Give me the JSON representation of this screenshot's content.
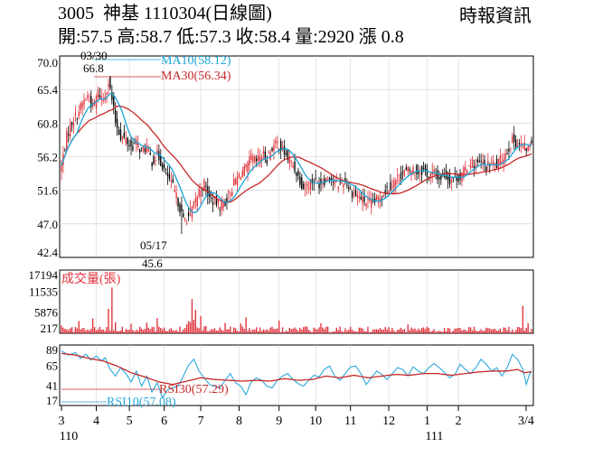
{
  "header": {
    "title": "3005  神基 1110304(日線圖)",
    "source": "時報資訊",
    "quote": "開:57.5 高:58.7 低:57.3 收:58.4 量:2920 漲 0.8"
  },
  "colors": {
    "candle_up": "#e0303a",
    "candle_down": "#000000",
    "ma10": "#1aa4d6",
    "ma30": "#c82828",
    "volume": "#e0303a",
    "rsi10": "#2aa8dc",
    "rsi30": "#c82828",
    "grid": "#cccccc"
  },
  "chart_data": [
    {
      "type": "candlestick",
      "title": "price",
      "ylim": [
        42.4,
        70.0
      ],
      "yticks": [
        "70.0",
        "65.4",
        "60.8",
        "56.2",
        "51.6",
        "47.0",
        "42.4"
      ],
      "series": [
        {
          "name": "MA10",
          "label": "MA10(58.12)"
        },
        {
          "name": "MA30",
          "label": "MA30(56.34)"
        }
      ],
      "annotations": [
        {
          "text_date": "03/30",
          "text_value": "66.8",
          "type": "high"
        },
        {
          "text_date": "05/17",
          "text_value": "45.6",
          "type": "low"
        }
      ],
      "close_path": [
        [
          0,
          55
        ],
        [
          3,
          59
        ],
        [
          6,
          61
        ],
        [
          9,
          62
        ],
        [
          12,
          63.5
        ],
        [
          15,
          64.5
        ],
        [
          18,
          63
        ],
        [
          21,
          65
        ],
        [
          24,
          64
        ],
        [
          27,
          66.5
        ],
        [
          29,
          64
        ],
        [
          31,
          61
        ],
        [
          34,
          59
        ],
        [
          37,
          58.5
        ],
        [
          40,
          57.5
        ],
        [
          43,
          58
        ],
        [
          46,
          57
        ],
        [
          49,
          57.5
        ],
        [
          52,
          55.5
        ],
        [
          55,
          56.5
        ],
        [
          58,
          55
        ],
        [
          61,
          53.5
        ],
        [
          64,
          52
        ],
        [
          67,
          50
        ],
        [
          70,
          47.5
        ],
        [
          73,
          48
        ],
        [
          76,
          49.5
        ],
        [
          79,
          51.5
        ],
        [
          82,
          52.5
        ],
        [
          85,
          50.5
        ],
        [
          88,
          50
        ],
        [
          91,
          49.5
        ],
        [
          94,
          50
        ],
        [
          97,
          51.5
        ],
        [
          100,
          53
        ],
        [
          103,
          54
        ],
        [
          106,
          54.5
        ],
        [
          109,
          56
        ],
        [
          112,
          55.5
        ],
        [
          115,
          56.5
        ],
        [
          118,
          56
        ],
        [
          121,
          57.5
        ],
        [
          124,
          58
        ],
        [
          127,
          57
        ],
        [
          130,
          56
        ],
        [
          133,
          55
        ],
        [
          136,
          53.5
        ],
        [
          139,
          52
        ],
        [
          142,
          52.5
        ],
        [
          145,
          53
        ],
        [
          148,
          52.5
        ],
        [
          151,
          53
        ],
        [
          154,
          53.5
        ],
        [
          157,
          52.5
        ],
        [
          160,
          52.5
        ],
        [
          163,
          53
        ],
        [
          166,
          51.5
        ],
        [
          169,
          51
        ],
        [
          172,
          50.5
        ],
        [
          175,
          50
        ],
        [
          178,
          49.8
        ],
        [
          181,
          50.3
        ],
        [
          184,
          51
        ],
        [
          187,
          51.8
        ],
        [
          190,
          52.5
        ],
        [
          193,
          53.2
        ],
        [
          196,
          54
        ],
        [
          199,
          54.2
        ],
        [
          202,
          54.5
        ],
        [
          205,
          54
        ],
        [
          208,
          54.5
        ],
        [
          211,
          53.5
        ],
        [
          214,
          54
        ],
        [
          217,
          53.2
        ],
        [
          220,
          53.8
        ],
        [
          223,
          53
        ],
        [
          226,
          53.5
        ],
        [
          229,
          53.3
        ],
        [
          232,
          54.5
        ],
        [
          235,
          55.5
        ],
        [
          238,
          55
        ],
        [
          241,
          55.3
        ],
        [
          244,
          54.8
        ],
        [
          247,
          55.3
        ],
        [
          250,
          55
        ],
        [
          253,
          56
        ],
        [
          256,
          57
        ],
        [
          259,
          58.5
        ],
        [
          262,
          58
        ],
        [
          265,
          57.5
        ],
        [
          268,
          57.3
        ],
        [
          270,
          58.4
        ]
      ]
    },
    {
      "type": "bar",
      "title": "成交量(張)",
      "ylim": [
        217,
        17194
      ],
      "yticks": [
        "17194",
        "11535",
        "5876",
        "217"
      ],
      "values_by_index": [
        [
          0,
          2300
        ],
        [
          10,
          3500
        ],
        [
          18,
          4200
        ],
        [
          27,
          6800
        ],
        [
          29,
          12500
        ],
        [
          31,
          3200
        ],
        [
          40,
          2800
        ],
        [
          49,
          3100
        ],
        [
          55,
          4300
        ],
        [
          73,
          3500
        ],
        [
          75,
          9400
        ],
        [
          77,
          6500
        ],
        [
          80,
          4800
        ],
        [
          94,
          3000
        ],
        [
          103,
          2800
        ],
        [
          106,
          4500
        ],
        [
          125,
          3600
        ],
        [
          149,
          2900
        ],
        [
          199,
          2600
        ],
        [
          237,
          2000
        ],
        [
          265,
          7600
        ],
        [
          268,
          2920
        ]
      ],
      "baseline_value": 1200
    },
    {
      "type": "line",
      "title": "RSI",
      "ylim": [
        17,
        89
      ],
      "yticks": [
        "89",
        "65",
        "41",
        "17"
      ],
      "series": [
        {
          "name": "RSI30",
          "label": "RSI30(57.29)"
        },
        {
          "name": "RSI10",
          "label": "RSI10(57.08)"
        }
      ],
      "rsi10_path": [
        [
          0,
          82
        ],
        [
          4,
          77
        ],
        [
          8,
          80
        ],
        [
          11,
          73
        ],
        [
          14,
          78
        ],
        [
          17,
          71
        ],
        [
          20,
          76
        ],
        [
          23,
          70
        ],
        [
          25,
          74
        ],
        [
          28,
          60
        ],
        [
          31,
          52
        ],
        [
          34,
          62
        ],
        [
          37,
          55
        ],
        [
          40,
          45
        ],
        [
          43,
          58
        ],
        [
          46,
          40
        ],
        [
          49,
          52
        ],
        [
          52,
          33
        ],
        [
          55,
          44
        ],
        [
          58,
          26
        ],
        [
          61,
          36
        ],
        [
          64,
          38
        ],
        [
          67,
          40
        ],
        [
          70,
          52
        ],
        [
          73,
          65
        ],
        [
          76,
          72
        ],
        [
          79,
          58
        ],
        [
          82,
          50
        ],
        [
          85,
          42
        ],
        [
          88,
          40
        ],
        [
          91,
          38
        ],
        [
          94,
          47
        ],
        [
          97,
          55
        ],
        [
          100,
          44
        ],
        [
          103,
          40
        ],
        [
          106,
          30
        ],
        [
          109,
          45
        ],
        [
          112,
          50
        ],
        [
          115,
          47
        ],
        [
          118,
          40
        ],
        [
          121,
          38
        ],
        [
          124,
          47
        ],
        [
          127,
          52
        ],
        [
          130,
          55
        ],
        [
          133,
          48
        ],
        [
          136,
          43
        ],
        [
          139,
          40
        ],
        [
          142,
          47
        ],
        [
          145,
          53
        ],
        [
          148,
          51
        ],
        [
          151,
          60
        ],
        [
          154,
          64
        ],
        [
          157,
          52
        ],
        [
          160,
          47
        ],
        [
          163,
          55
        ],
        [
          166,
          63
        ],
        [
          169,
          64
        ],
        [
          172,
          55
        ],
        [
          175,
          42
        ],
        [
          178,
          50
        ],
        [
          181,
          58
        ],
        [
          184,
          54
        ],
        [
          187,
          48
        ],
        [
          190,
          55
        ],
        [
          193,
          62
        ],
        [
          196,
          60
        ],
        [
          199,
          52
        ],
        [
          202,
          63
        ],
        [
          205,
          58
        ],
        [
          208,
          55
        ],
        [
          211,
          62
        ],
        [
          214,
          67
        ],
        [
          217,
          62
        ],
        [
          220,
          56
        ],
        [
          223,
          50
        ],
        [
          226,
          54
        ],
        [
          229,
          66
        ],
        [
          232,
          60
        ],
        [
          235,
          55
        ],
        [
          238,
          62
        ],
        [
          241,
          72
        ],
        [
          244,
          66
        ],
        [
          247,
          58
        ],
        [
          250,
          62
        ],
        [
          253,
          52
        ],
        [
          256,
          62
        ],
        [
          259,
          78
        ],
        [
          262,
          72
        ],
        [
          265,
          60
        ],
        [
          267,
          42
        ],
        [
          269,
          55
        ],
        [
          270,
          57.08
        ]
      ],
      "rsi30_path": [
        [
          0,
          79
        ],
        [
          8,
          77
        ],
        [
          16,
          73
        ],
        [
          24,
          70
        ],
        [
          32,
          64
        ],
        [
          40,
          56
        ],
        [
          48,
          51
        ],
        [
          56,
          45
        ],
        [
          64,
          42
        ],
        [
          72,
          46
        ],
        [
          80,
          50
        ],
        [
          88,
          48
        ],
        [
          96,
          47
        ],
        [
          104,
          46
        ],
        [
          112,
          47
        ],
        [
          120,
          46
        ],
        [
          128,
          49
        ],
        [
          136,
          47
        ],
        [
          144,
          48
        ],
        [
          152,
          52
        ],
        [
          160,
          50
        ],
        [
          168,
          53
        ],
        [
          176,
          50
        ],
        [
          184,
          52
        ],
        [
          192,
          54
        ],
        [
          200,
          53
        ],
        [
          208,
          55
        ],
        [
          216,
          55
        ],
        [
          224,
          53
        ],
        [
          232,
          55
        ],
        [
          240,
          57
        ],
        [
          248,
          58
        ],
        [
          256,
          58
        ],
        [
          262,
          60
        ],
        [
          266,
          56
        ],
        [
          270,
          57.29
        ]
      ]
    }
  ],
  "xaxis": {
    "month_labels": [
      {
        "label": "3",
        "index": 0
      },
      {
        "label": "4",
        "index": 20
      },
      {
        "label": "5",
        "index": 39
      },
      {
        "label": "6",
        "index": 59
      },
      {
        "label": "7",
        "index": 80
      },
      {
        "label": "8",
        "index": 102
      },
      {
        "label": "9",
        "index": 125
      },
      {
        "label": "10",
        "index": 146
      },
      {
        "label": "11",
        "index": 166
      },
      {
        "label": "12",
        "index": 188
      },
      {
        "label": "1",
        "index": 210
      },
      {
        "label": "2",
        "index": 228
      },
      {
        "label": "3/4",
        "index": 243
      }
    ],
    "year_labels": [
      {
        "label": "110",
        "index": 0
      },
      {
        "label": "111",
        "index": 210
      }
    ],
    "count": 271
  }
}
